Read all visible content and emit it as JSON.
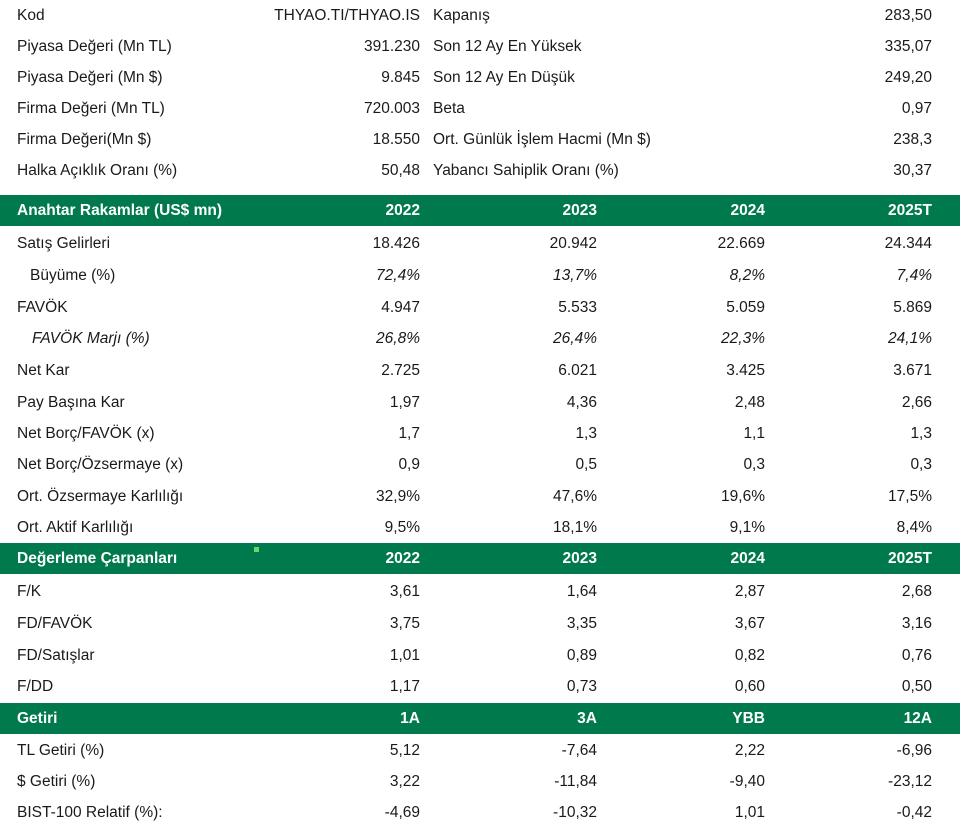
{
  "info": {
    "left": [
      {
        "label": "Kod",
        "value": "THYAO.TI/THYAO.IS"
      },
      {
        "label": "Piyasa Değeri (Mn TL)",
        "value": "391.230"
      },
      {
        "label": "Piyasa Değeri (Mn $)",
        "value": "9.845"
      },
      {
        "label": "Firma Değeri (Mn TL)",
        "value": "720.003"
      },
      {
        "label": "Firma Değeri(Mn $)",
        "value": "18.550"
      },
      {
        "label": "Halka Açıklık Oranı (%)",
        "value": "50,48"
      }
    ],
    "right": [
      {
        "label": "Kapanış",
        "value": "283,50"
      },
      {
        "label": "Son 12 Ay En Yüksek",
        "value": "335,07"
      },
      {
        "label": "Son 12 Ay En Düşük",
        "value": "249,20"
      },
      {
        "label": "Beta",
        "value": "0,97"
      },
      {
        "label": "Ort. Günlük İşlem Hacmi (Mn $)",
        "value": "238,3"
      },
      {
        "label": "Yabancı Sahiplik Oranı (%)",
        "value": "30,37"
      }
    ]
  },
  "key_figures": {
    "header": {
      "title": "Anahtar Rakamlar (US$ mn)",
      "cols": [
        "2022",
        "2023",
        "2024",
        "2025T"
      ]
    },
    "rows": [
      {
        "label": "Satış Gelirleri",
        "values": [
          "18.426",
          "20.942",
          "22.669",
          "24.344"
        ]
      },
      {
        "label": "Büyüme (%)",
        "values": [
          "72,4%",
          "13,7%",
          "8,2%",
          "7,4%"
        ]
      },
      {
        "label": "FAVÖK",
        "values": [
          "4.947",
          "5.533",
          "5.059",
          "5.869"
        ]
      },
      {
        "label": "FAVÖK Marjı (%)",
        "values": [
          "26,8%",
          "26,4%",
          "22,3%",
          "24,1%"
        ]
      },
      {
        "label": "Net Kar",
        "values": [
          "2.725",
          "6.021",
          "3.425",
          "3.671"
        ]
      },
      {
        "label": "Pay Başına Kar",
        "values": [
          "1,97",
          "4,36",
          "2,48",
          "2,66"
        ]
      },
      {
        "label": "Net Borç/FAVÖK (x)",
        "values": [
          "1,7",
          "1,3",
          "1,1",
          "1,3"
        ]
      },
      {
        "label": "Net Borç/Özsermaye (x)",
        "values": [
          "0,9",
          "0,5",
          "0,3",
          "0,3"
        ]
      },
      {
        "label": "Ort. Özsermaye Karlılığı",
        "values": [
          "32,9%",
          "47,6%",
          "19,6%",
          "17,5%"
        ]
      },
      {
        "label": "Ort. Aktif Karlılığı",
        "values": [
          "9,5%",
          "18,1%",
          "9,1%",
          "8,4%"
        ]
      }
    ]
  },
  "valuation": {
    "header": {
      "title": "Değerleme Çarpanları",
      "cols": [
        "2022",
        "2023",
        "2024",
        "2025T"
      ]
    },
    "rows": [
      {
        "label": "F/K",
        "values": [
          "3,61",
          "1,64",
          "2,87",
          "2,68"
        ]
      },
      {
        "label": "FD/FAVÖK",
        "values": [
          "3,75",
          "3,35",
          "3,67",
          "3,16"
        ]
      },
      {
        "label": "FD/Satışlar",
        "values": [
          "1,01",
          "0,89",
          "0,82",
          "0,76"
        ]
      },
      {
        "label": "F/DD",
        "values": [
          "1,17",
          "0,73",
          "0,60",
          "0,50"
        ]
      }
    ]
  },
  "returns": {
    "header": {
      "title": "Getiri",
      "cols": [
        "1A",
        "3A",
        "YBB",
        "12A"
      ]
    },
    "rows": [
      {
        "label": "TL Getiri (%)",
        "values": [
          "5,12",
          "-7,64",
          "2,22",
          "-6,96"
        ]
      },
      {
        "label": "$ Getiri (%)",
        "values": [
          "3,22",
          "-11,84",
          "-9,40",
          "-23,12"
        ]
      },
      {
        "label": "BIST-100 Relatif (%):",
        "values": [
          "-4,69",
          "-10,32",
          "1,01",
          "-0,42"
        ]
      }
    ]
  },
  "colors": {
    "header_bg": "#007a4d",
    "header_text": "#ffffff"
  }
}
